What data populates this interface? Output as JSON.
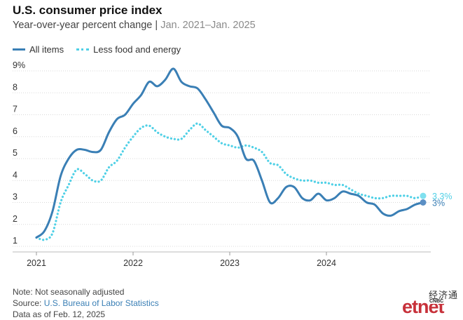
{
  "title": "U.S. consumer price index",
  "subtitle": "Year-over-year percent change",
  "subtitle_sep": " | ",
  "subtitle_range": "Jan. 2021–Jan. 2025",
  "legend": [
    {
      "label": "All items",
      "style": "solid",
      "color": "#3a7fb5"
    },
    {
      "label": "Less food and energy",
      "style": "dotted",
      "color": "#4fd0e6"
    }
  ],
  "chart_data": {
    "type": "line",
    "x_start": "2021-01",
    "x_ticks": [
      "2021",
      "2022",
      "2023",
      "2024"
    ],
    "y_ticks": [
      "1",
      "2",
      "3",
      "4",
      "5",
      "6",
      "7",
      "8",
      "9%"
    ],
    "ylim": [
      1,
      9
    ],
    "grid": true,
    "series": [
      {
        "name": "All items",
        "color": "#3a7fb5",
        "style": "solid",
        "end_label": "3%",
        "values": [
          1.4,
          1.7,
          2.6,
          4.2,
          5.0,
          5.4,
          5.4,
          5.3,
          5.4,
          6.2,
          6.8,
          7.0,
          7.5,
          7.9,
          8.5,
          8.3,
          8.6,
          9.1,
          8.5,
          8.3,
          8.2,
          7.7,
          7.1,
          6.5,
          6.4,
          6.0,
          5.0,
          4.9,
          4.0,
          3.0,
          3.2,
          3.7,
          3.7,
          3.2,
          3.1,
          3.4,
          3.1,
          3.2,
          3.5,
          3.4,
          3.3,
          3.0,
          2.9,
          2.5,
          2.4,
          2.6,
          2.7,
          2.9,
          3.0
        ]
      },
      {
        "name": "Less food and energy",
        "color": "#4fd0e6",
        "style": "dotted",
        "end_label": "3.3%",
        "values": [
          1.4,
          1.3,
          1.6,
          3.0,
          3.8,
          4.5,
          4.3,
          4.0,
          4.0,
          4.6,
          4.9,
          5.5,
          6.0,
          6.4,
          6.5,
          6.2,
          6.0,
          5.9,
          5.9,
          6.3,
          6.6,
          6.3,
          6.0,
          5.7,
          5.6,
          5.5,
          5.6,
          5.5,
          5.3,
          4.8,
          4.7,
          4.3,
          4.1,
          4.0,
          4.0,
          3.9,
          3.9,
          3.8,
          3.8,
          3.6,
          3.4,
          3.3,
          3.2,
          3.2,
          3.3,
          3.3,
          3.3,
          3.2,
          3.3
        ]
      }
    ]
  },
  "notes": {
    "note": "Note: Not seasonally adjusted",
    "source_prefix": "Source: ",
    "source_link": "U.S. Bureau of Labor Statistics",
    "asof": "Data as of Feb. 12, 2025"
  },
  "logo": {
    "chinese": "经济通",
    "et": "et",
    "net": "net",
    "cnbc": "CNBC"
  }
}
